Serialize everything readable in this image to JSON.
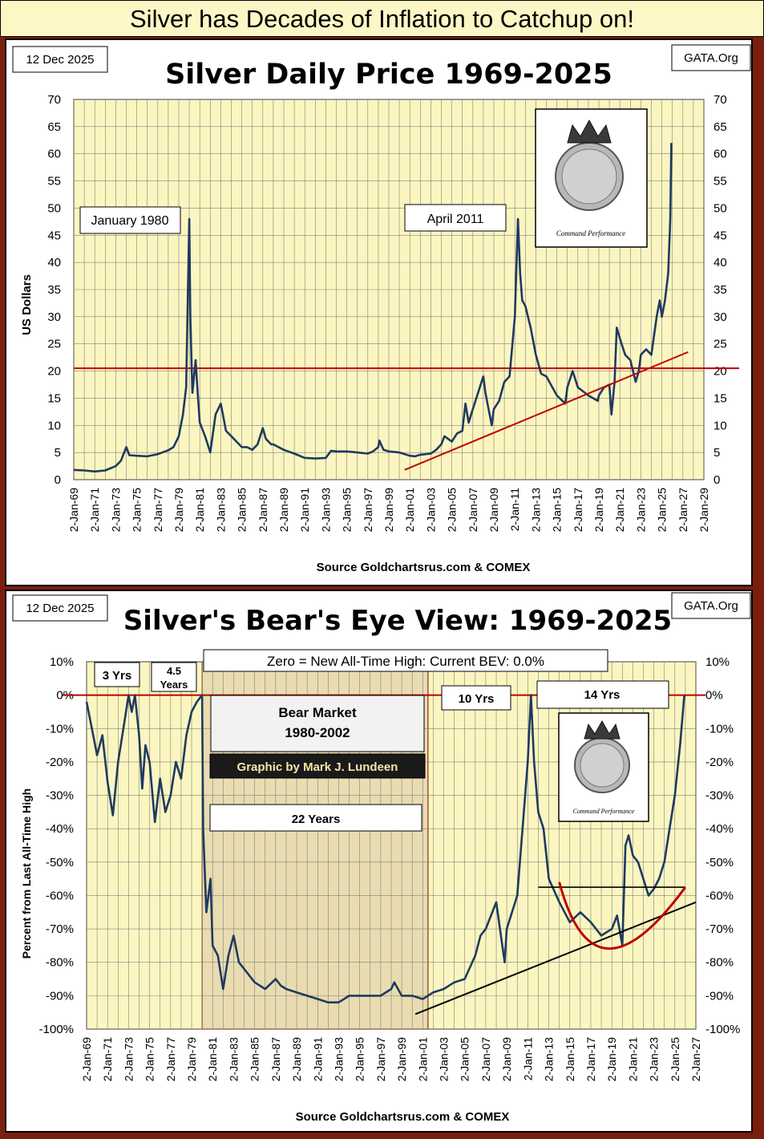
{
  "main_title": "Silver has Decades of Inflation to Catchup on!",
  "colors": {
    "plot_bg": "#fbf6c0",
    "grid": "#808080",
    "series": "#1f3a60",
    "redline": "#c00000",
    "trend": "#c00000",
    "shade": "#e9dcb0"
  },
  "chart_data": [
    {
      "type": "line",
      "title": "Silver Daily Price 1969-2025",
      "date_label": "12 Dec 2025",
      "brand_label": "GATA.Org",
      "ylabel": "US Dollars",
      "source": "Source Goldchartsrus.com & COMEX",
      "ylim": [
        0,
        70
      ],
      "yticks": [
        "0",
        "5",
        "10",
        "15",
        "20",
        "25",
        "30",
        "35",
        "40",
        "45",
        "50",
        "55",
        "60",
        "65",
        "70"
      ],
      "xlim": [
        1969,
        2029
      ],
      "xticks": [
        "2-Jan-69",
        "2-Jan-71",
        "2-Jan-73",
        "2-Jan-75",
        "2-Jan-77",
        "2-Jan-79",
        "2-Jan-81",
        "2-Jan-83",
        "2-Jan-85",
        "2-Jan-87",
        "2-Jan-89",
        "2-Jan-91",
        "2-Jan-93",
        "2-Jan-95",
        "2-Jan-97",
        "2-Jan-99",
        "2-Jan-01",
        "2-Jan-03",
        "2-Jan-05",
        "2-Jan-07",
        "2-Jan-09",
        "2-Jan-11",
        "2-Jan-13",
        "2-Jan-15",
        "2-Jan-17",
        "2-Jan-19",
        "2-Jan-21",
        "2-Jan-23",
        "2-Jan-25",
        "2-Jan-27",
        "2-Jan-29"
      ],
      "grid": true,
      "reference_line": 20.5,
      "trendline": {
        "x": [
          2000.5,
          2027.5
        ],
        "y": [
          1.8,
          23.5
        ]
      },
      "annotations": [
        "January 1980",
        "April 2011"
      ],
      "logo_text": "Command Performance",
      "series": [
        {
          "x": [
            1969,
            1970,
            1971,
            1972,
            1973,
            1973.5,
            1974,
            1974.3,
            1975,
            1976,
            1977,
            1978,
            1978.5,
            1979,
            1979.4,
            1979.7,
            1980.0,
            1980.1,
            1980.3,
            1980.6,
            1980.8,
            1981,
            1981.5,
            1982,
            1982.5,
            1983,
            1983.3,
            1983.5,
            1984,
            1985,
            1985.5,
            1986,
            1986.5,
            1987,
            1987.3,
            1987.8,
            1988,
            1989,
            1990,
            1991,
            1992,
            1993,
            1993.5,
            1994,
            1995,
            1996,
            1997,
            1997.5,
            1998,
            1998.1,
            1998.5,
            1999,
            2000,
            2001,
            2001.5,
            2002,
            2003,
            2003.5,
            2004,
            2004.3,
            2005,
            2005.5,
            2006,
            2006.3,
            2006.6,
            2007,
            2008,
            2008.2,
            2008.8,
            2009,
            2009.5,
            2010,
            2010.5,
            2011,
            2011.3,
            2011.5,
            2011.7,
            2012,
            2012.5,
            2013,
            2013.5,
            2014,
            2015,
            2015.8,
            2016,
            2016.5,
            2017,
            2018,
            2018.9,
            2019,
            2019.5,
            2020,
            2020.2,
            2020.5,
            2020.7,
            2021,
            2021.5,
            2022,
            2022.5,
            2022.8,
            2023,
            2023.5,
            2024,
            2024.5,
            2024.8,
            2025,
            2025.3,
            2025.6,
            2025.8,
            2025.9
          ],
          "values": [
            1.8,
            1.7,
            1.5,
            1.7,
            2.5,
            3.5,
            6.0,
            4.5,
            4.4,
            4.3,
            4.7,
            5.4,
            6.0,
            8.0,
            12.0,
            17.0,
            48.0,
            30.0,
            16.0,
            22.0,
            16.0,
            10.5,
            8.0,
            5.0,
            12.0,
            14.0,
            11.0,
            9.0,
            8.0,
            6.0,
            6.0,
            5.5,
            6.5,
            9.5,
            7.5,
            6.5,
            6.5,
            5.5,
            4.8,
            4.0,
            3.9,
            4.0,
            5.3,
            5.2,
            5.2,
            5.0,
            4.8,
            5.2,
            6.0,
            7.2,
            5.5,
            5.2,
            5.0,
            4.4,
            4.3,
            4.6,
            4.8,
            5.5,
            6.5,
            8.0,
            7.0,
            8.5,
            9.0,
            14.0,
            10.5,
            13.0,
            19.0,
            16.0,
            10.0,
            13.0,
            14.5,
            18.0,
            19.0,
            30.0,
            48.0,
            38.0,
            33.0,
            32.0,
            28.0,
            23.0,
            19.5,
            19.0,
            15.5,
            14.0,
            17.0,
            20.0,
            17.0,
            15.5,
            14.5,
            15.5,
            17.0,
            17.5,
            12.0,
            18.0,
            28.0,
            26.0,
            23.0,
            22.0,
            18.0,
            20.0,
            23.0,
            24.0,
            23.0,
            30.0,
            33.0,
            30.0,
            33.0,
            38.0,
            48.0,
            62.0
          ]
        }
      ]
    },
    {
      "type": "line",
      "title": "Silver's Bear's Eye View: 1969-2025",
      "date_label": "12 Dec 2025",
      "brand_label": "GATA.Org",
      "ylabel": "Percent  from  Last  All-Time  High",
      "source": "Source  Goldchartsrus.com  & COMEX",
      "ylim": [
        -100,
        10
      ],
      "yticks": [
        "-100%",
        "-90%",
        "-80%",
        "-70%",
        "-60%",
        "-50%",
        "-40%",
        "-30%",
        "-20%",
        "-10%",
        "0%",
        "10%"
      ],
      "xlim": [
        1969,
        2027
      ],
      "xticks": [
        "2-Jan-69",
        "2-Jan-71",
        "2-Jan-73",
        "2-Jan-75",
        "2-Jan-77",
        "2-Jan-79",
        "2-Jan-81",
        "2-Jan-83",
        "2-Jan-85",
        "2-Jan-87",
        "2-Jan-89",
        "2-Jan-91",
        "2-Jan-93",
        "2-Jan-95",
        "2-Jan-97",
        "2-Jan-99",
        "2-Jan-01",
        "2-Jan-03",
        "2-Jan-05",
        "2-Jan-07",
        "2-Jan-09",
        "2-Jan-11",
        "2-Jan-13",
        "2-Jan-15",
        "2-Jan-17",
        "2-Jan-19",
        "2-Jan-21",
        "2-Jan-23",
        "2-Jan-25",
        "2-Jan-27"
      ],
      "grid": true,
      "reference_line": 0,
      "shaded_range": [
        1980,
        2001.5
      ],
      "trendline": {
        "x": [
          2000.3,
          2027
        ],
        "y": [
          -95.5,
          -62
        ]
      },
      "resistance_line": {
        "x": [
          2012,
          2026
        ],
        "y": [
          -57.5,
          -57.5
        ]
      },
      "annotations": {
        "bev_banner": "Zero = New All-Time High: Current BEV: 0.0%",
        "three_years": "3 Yrs",
        "four_half_years_top": "4.5",
        "four_half_years_bottom": "Years",
        "bear_market_line1": "Bear Market",
        "bear_market_line2": "1980-2002",
        "credit": "Graphic by Mark J. Lundeen",
        "twenty_two_years": "22 Years",
        "ten_years": "10 Yrs",
        "fourteen_years": "14 Yrs"
      },
      "logo_text": "Command Performance",
      "series": [
        {
          "x": [
            1969,
            1969.5,
            1970,
            1970.5,
            1971,
            1971.5,
            1972,
            1972.5,
            1973,
            1973.3,
            1973.6,
            1974,
            1974.3,
            1974.6,
            1975,
            1975.5,
            1976,
            1976.5,
            1977,
            1977.5,
            1978,
            1978.5,
            1979,
            1979.5,
            1980,
            1980.1,
            1980.4,
            1980.8,
            1981,
            1981.5,
            1982,
            1982.5,
            1983,
            1983.5,
            1984,
            1985,
            1986,
            1987,
            1987.5,
            1988,
            1989,
            1990,
            1991,
            1992,
            1993,
            1994,
            1995,
            1996,
            1997,
            1998,
            1998.3,
            1999,
            2000,
            2001,
            2001.5,
            2002,
            2003,
            2004,
            2005,
            2006,
            2006.5,
            2007,
            2008,
            2008.8,
            2009,
            2010,
            2010.5,
            2011,
            2011.3,
            2011.6,
            2012,
            2012.5,
            2013,
            2014,
            2015,
            2016,
            2017,
            2018,
            2019,
            2019.5,
            2020,
            2020.3,
            2020.6,
            2021,
            2021.5,
            2022,
            2022.5,
            2023,
            2023.5,
            2024,
            2024.5,
            2025,
            2025.5,
            2025.9
          ],
          "values": [
            -2,
            -10,
            -18,
            -12,
            -26,
            -36,
            -20,
            -10,
            0,
            -5,
            0,
            -12,
            -28,
            -15,
            -20,
            -38,
            -25,
            -35,
            -30,
            -20,
            -25,
            -12,
            -5,
            -2,
            0,
            -40,
            -65,
            -55,
            -75,
            -78,
            -88,
            -78,
            -72,
            -80,
            -82,
            -86,
            -88,
            -85,
            -87,
            -88,
            -89,
            -90,
            -91,
            -92,
            -92,
            -90,
            -90,
            -90,
            -90,
            -88,
            -86,
            -90,
            -90,
            -91,
            -90,
            -89,
            -88,
            -86,
            -85,
            -78,
            -72,
            -70,
            -62,
            -80,
            -70,
            -60,
            -40,
            -20,
            0,
            -20,
            -35,
            -40,
            -55,
            -62,
            -68,
            -65,
            -68,
            -72,
            -70,
            -66,
            -75,
            -45,
            -42,
            -48,
            -50,
            -55,
            -60,
            -58,
            -55,
            -50,
            -40,
            -30,
            -15,
            0
          ]
        }
      ]
    }
  ]
}
